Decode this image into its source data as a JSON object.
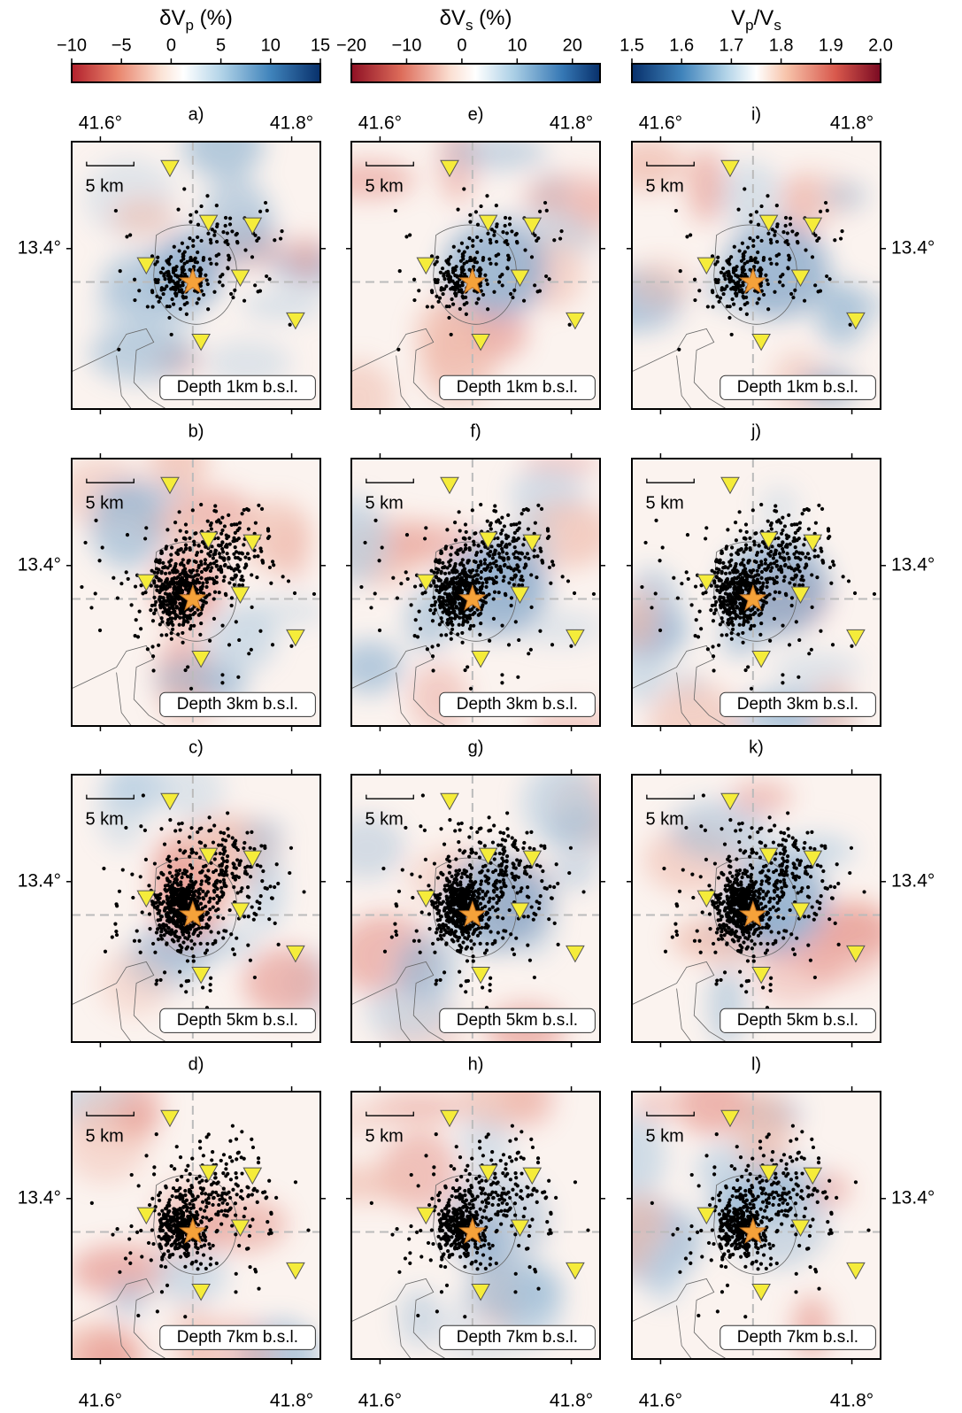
{
  "colorbars": [
    {
      "title": [
        {
          "text": "δV"
        },
        {
          "text": "p",
          "sub": true
        },
        {
          "text": " (%)"
        }
      ],
      "lim": [
        -10,
        15
      ],
      "ticks": [
        {
          "value": -10,
          "label": "−10"
        },
        {
          "value": -5,
          "label": "−5"
        },
        0,
        5,
        10,
        15
      ]
    },
    {
      "title": [
        {
          "text": "δV"
        },
        {
          "text": "s",
          "sub": true
        },
        {
          "text": " (%)"
        }
      ],
      "lim": [
        -20,
        25
      ],
      "ticks": [
        {
          "value": -20,
          "label": "−20"
        },
        {
          "value": -10,
          "label": "−10"
        },
        0,
        10,
        20
      ]
    },
    {
      "title": [
        {
          "text": "V"
        },
        {
          "text": "p",
          "sub": true
        },
        {
          "text": "/V"
        },
        {
          "text": "s",
          "sub": true
        }
      ],
      "lim": [
        1.5,
        2.0
      ],
      "ticks": [
        1.5,
        1.6,
        1.7,
        1.8,
        1.9,
        {
          "value": 2,
          "label": "2.0"
        }
      ]
    }
  ],
  "map_axes": {
    "xlim": [
      41.57,
      41.83
    ],
    "ylim": [
      13.25,
      13.5
    ],
    "xticks": [
      {
        "value": 41.6,
        "label": "41.6°"
      },
      {
        "value": 41.8,
        "label": "41.8°"
      }
    ],
    "yticks": [
      {
        "value": 13.4,
        "label": "13.4°"
      }
    ]
  },
  "scale_bar": "5 km",
  "columns": [
    {
      "panels": [
        {
          "letter": "a)",
          "depth": "Depth 1km b.s.l."
        },
        {
          "letter": "b)",
          "depth": "Depth 3km b.s.l."
        },
        {
          "letter": "c)",
          "depth": "Depth 5km b.s.l."
        },
        {
          "letter": "d)",
          "depth": "Depth 7km b.s.l."
        }
      ]
    },
    {
      "panels": [
        {
          "letter": "e)",
          "depth": "Depth 1km b.s.l."
        },
        {
          "letter": "f)",
          "depth": "Depth 3km b.s.l."
        },
        {
          "letter": "g)",
          "depth": "Depth 5km b.s.l."
        },
        {
          "letter": "h)",
          "depth": "Depth 7km b.s.l."
        }
      ]
    },
    {
      "panels": [
        {
          "letter": "i)",
          "depth": "Depth 1km b.s.l."
        },
        {
          "letter": "j)",
          "depth": "Depth 3km b.s.l."
        },
        {
          "letter": "k)",
          "depth": "Depth 5km b.s.l."
        },
        {
          "letter": "l)",
          "depth": "Depth 7km b.s.l."
        }
      ]
    }
  ]
}
